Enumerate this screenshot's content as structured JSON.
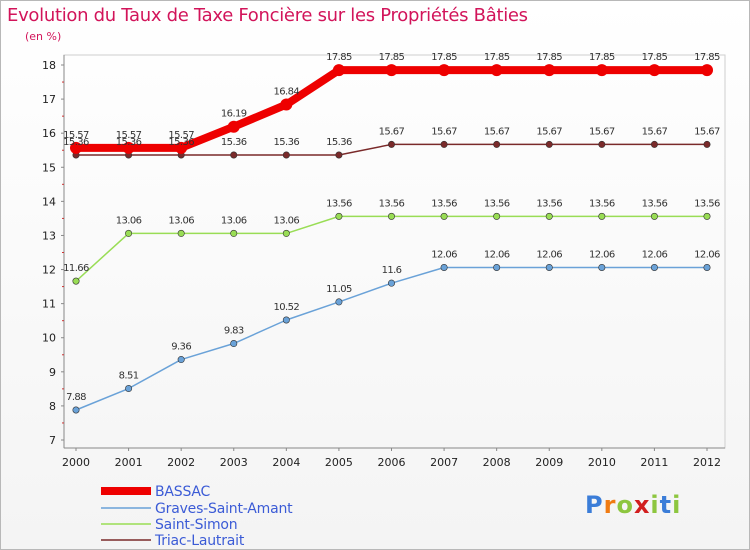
{
  "chart_data": {
    "type": "line",
    "title": "Evolution du Taux de Taxe Foncière sur les Propriétés Bâties",
    "ylabel": "(en %)",
    "xlabel": "",
    "ylim": [
      7,
      18
    ],
    "yticks": [
      "7",
      "8",
      "9",
      "10",
      "11",
      "12",
      "13",
      "14",
      "15",
      "16",
      "17",
      "18"
    ],
    "categories": [
      "2000",
      "2001",
      "2002",
      "2003",
      "2004",
      "2005",
      "2006",
      "2007",
      "2008",
      "2009",
      "2010",
      "2011",
      "2012"
    ],
    "series": [
      {
        "name": "BASSAC",
        "color": "#ee0000",
        "values": [
          15.57,
          15.57,
          15.57,
          16.19,
          16.84,
          17.85,
          17.85,
          17.85,
          17.85,
          17.85,
          17.85,
          17.85,
          17.85
        ],
        "labels": [
          "15.57",
          "15.57",
          "15.57",
          "16.19",
          "16.84",
          "17.85",
          "17.85",
          "17.85",
          "17.85",
          "17.85",
          "17.85",
          "17.85",
          "17.85"
        ]
      },
      {
        "name": "Graves-Saint-Amant",
        "color": "#6aa2d8",
        "values": [
          7.88,
          8.51,
          9.36,
          9.83,
          10.52,
          11.05,
          11.6,
          12.06,
          12.06,
          12.06,
          12.06,
          12.06,
          12.06
        ],
        "labels": [
          "7.88",
          "8.51",
          "9.36",
          "9.83",
          "10.52",
          "11.05",
          "11.6",
          "12.06",
          "12.06",
          "12.06",
          "12.06",
          "12.06",
          "12.06"
        ]
      },
      {
        "name": "Saint-Simon",
        "color": "#99dd55",
        "values": [
          11.66,
          13.06,
          13.06,
          13.06,
          13.06,
          13.56,
          13.56,
          13.56,
          13.56,
          13.56,
          13.56,
          13.56,
          13.56
        ],
        "labels": [
          "11.66",
          "13.06",
          "13.06",
          "13.06",
          "13.06",
          "13.56",
          "13.56",
          "13.56",
          "13.56",
          "13.56",
          "13.56",
          "13.56",
          "13.56"
        ]
      },
      {
        "name": "Triac-Lautrait",
        "color": "#7a2a2a",
        "values": [
          15.36,
          15.36,
          15.36,
          15.36,
          15.36,
          15.36,
          15.67,
          15.67,
          15.67,
          15.67,
          15.67,
          15.67,
          15.67
        ],
        "labels": [
          "15.36",
          "15.36",
          "15.36",
          "15.36",
          "15.36",
          "15.36",
          "15.67",
          "15.67",
          "15.67",
          "15.67",
          "15.67",
          "15.67",
          "15.67"
        ]
      }
    ]
  },
  "logo": {
    "letters": [
      "P",
      "r",
      "o",
      "x",
      "i",
      "t",
      "i"
    ],
    "colors": [
      "#3b7dd8",
      "#f07b12",
      "#8dc63f",
      "#d21e1e",
      "#8dc63f",
      "#3b7dd8",
      "#8dc63f"
    ]
  }
}
